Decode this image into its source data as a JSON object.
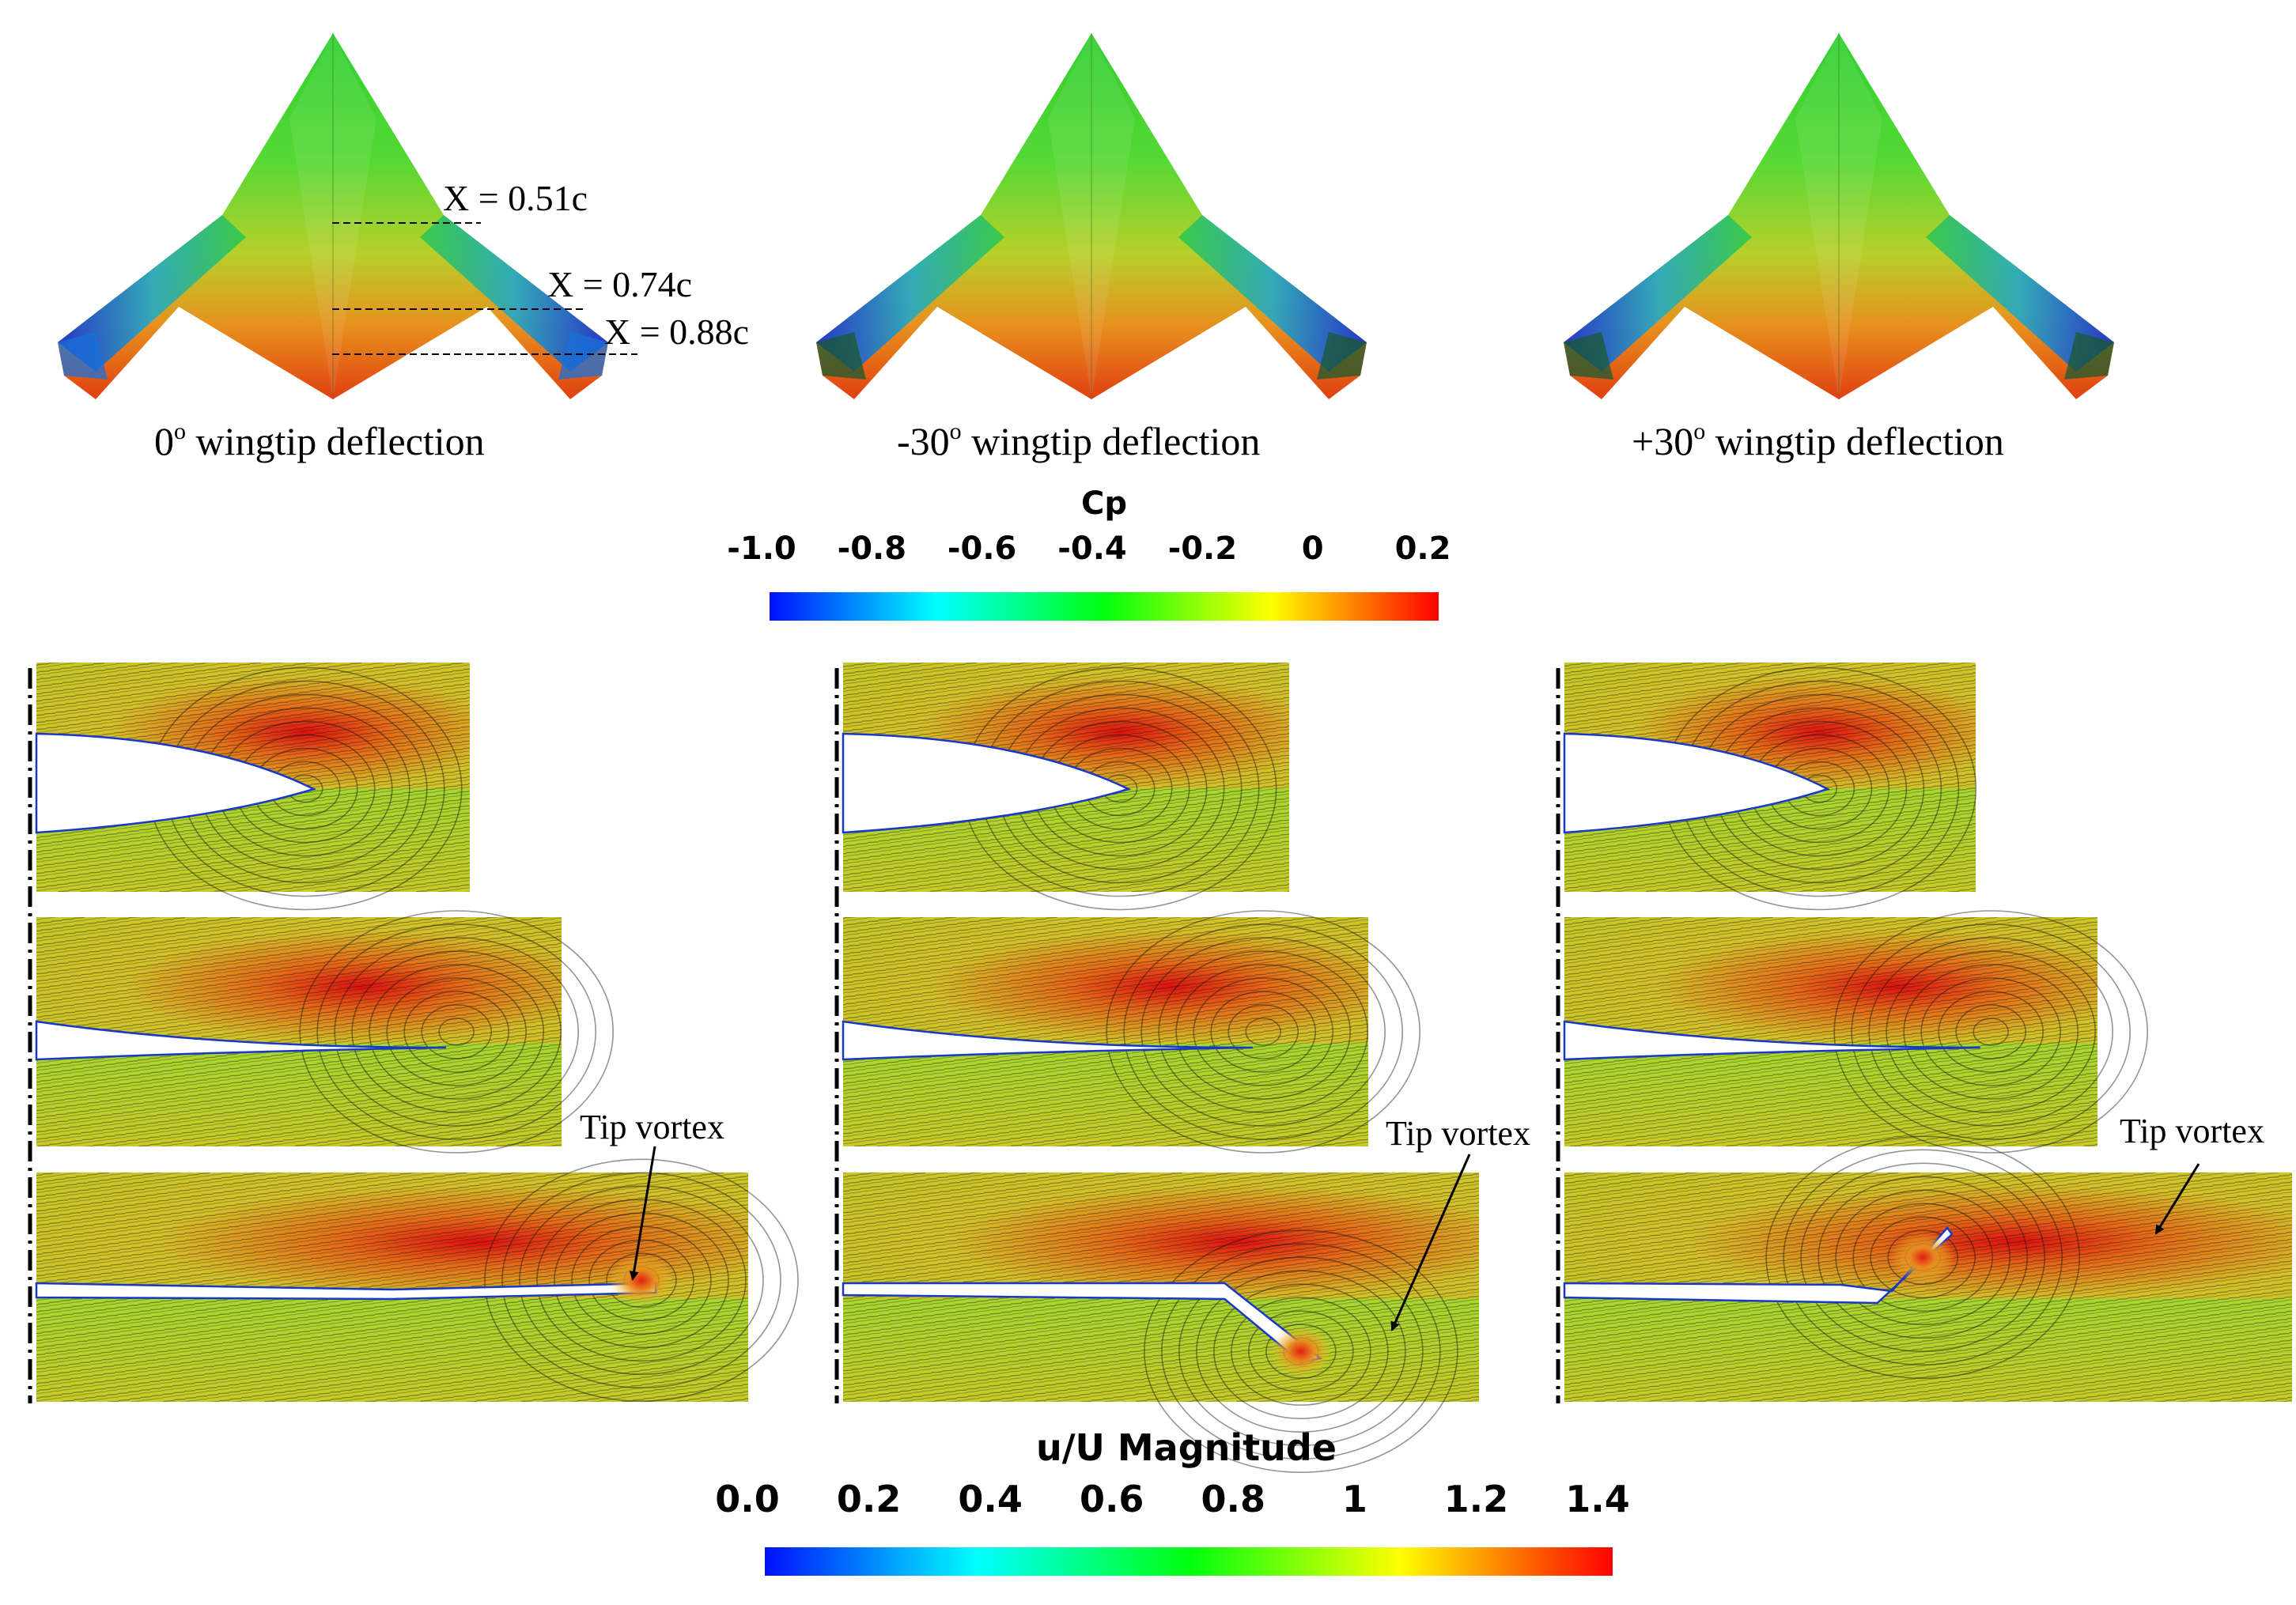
{
  "panels": [
    {
      "deflection_caption": "0° wingtip deflection",
      "caption_prefix": "0",
      "caption_suffix": " wingtip deflection"
    },
    {
      "deflection_caption": "-30° wingtip deflection",
      "caption_prefix": "-30",
      "caption_suffix": " wingtip deflection"
    },
    {
      "deflection_caption": "+30° wingtip deflection",
      "caption_prefix": "+30",
      "caption_suffix": " wingtip deflection"
    }
  ],
  "degree_mark": "o",
  "stations": [
    {
      "label": "X = 0.51c"
    },
    {
      "label": "X = 0.74c"
    },
    {
      "label": "X = 0.88c"
    }
  ],
  "cp_colorbar": {
    "title": "Cp",
    "ticks": [
      "-1.0",
      "-0.8",
      "-0.6",
      "-0.4",
      "-0.2",
      "0",
      "0.2"
    ],
    "colors": [
      "#0000ff",
      "#00ffff",
      "#00ff00",
      "#ffff00",
      "#ff0000"
    ]
  },
  "vel_colorbar": {
    "title": "u/U Magnitude",
    "ticks": [
      "0.0",
      "0.2",
      "0.4",
      "0.6",
      "0.8",
      "1",
      "1.2",
      "1.4"
    ],
    "colors": [
      "#0000ff",
      "#00ffff",
      "#00ff00",
      "#ffff00",
      "#ff0000"
    ]
  },
  "annotation": {
    "tip_vortex": "Tip vortex"
  }
}
